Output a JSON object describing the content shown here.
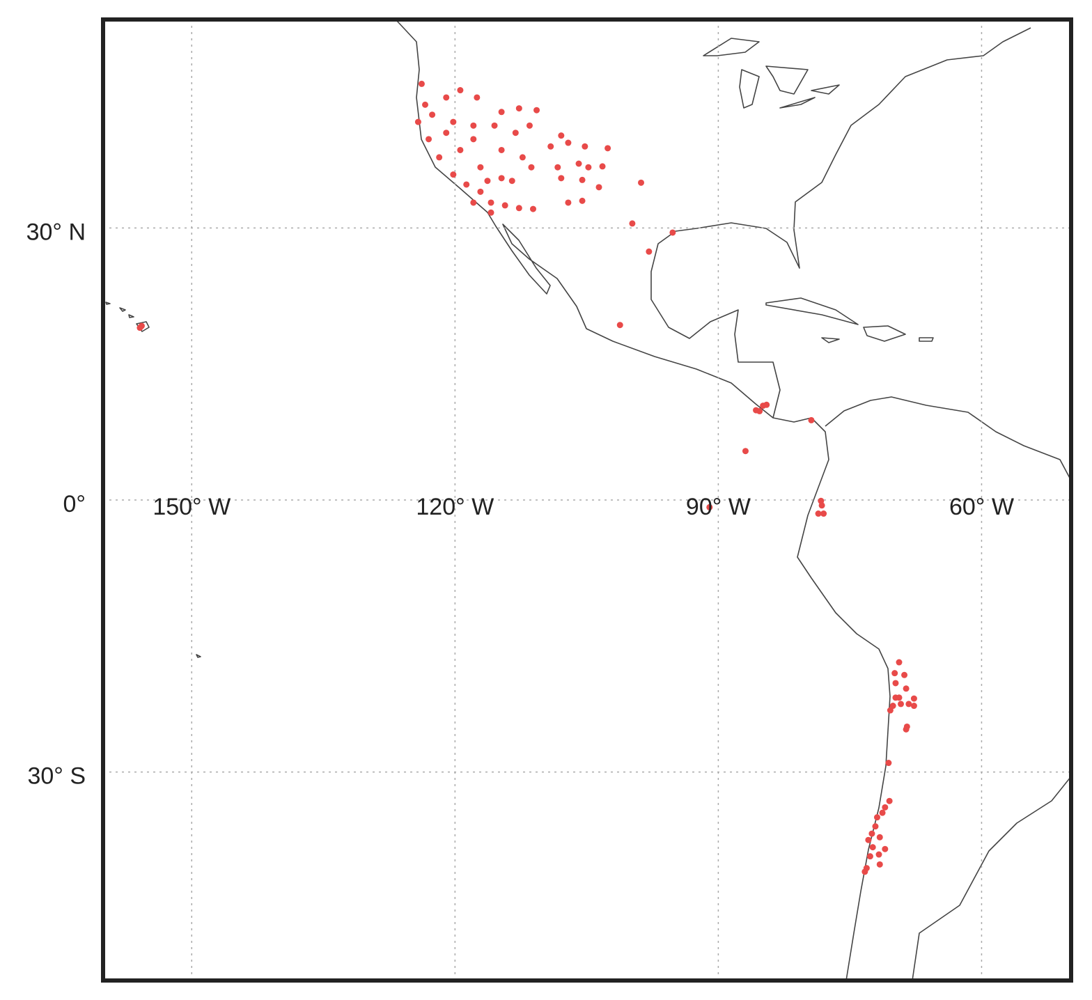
{
  "chart_data": {
    "type": "scatter",
    "color": "#e84a49",
    "grid": true,
    "xlim": [
      -160.1,
      -49.8
    ],
    "ylim": [
      -53,
      53
    ],
    "xticks": [
      {
        "value": -150,
        "label": "150° W"
      },
      {
        "value": -120,
        "label": "120° W"
      },
      {
        "value": -90,
        "label": "90° W"
      },
      {
        "value": -60,
        "label": "60° W"
      }
    ],
    "yticks": [
      {
        "value": 30,
        "label": "30° N"
      },
      {
        "value": 0,
        "label": "0°"
      },
      {
        "value": -30,
        "label": "30° S"
      }
    ],
    "x": [
      -123.8,
      -123.4,
      -124.2,
      -123.0,
      -121.8,
      -120.2,
      -118.7,
      -117.1,
      -115.9,
      -115.9,
      -117.9,
      -116.3,
      -114.7,
      -117.1,
      -119.4,
      -121.0,
      -122.6,
      -121.0,
      -119.4,
      -117.5,
      -114.7,
      -112.7,
      -110.7,
      -111.5,
      -113.1,
      -115.5,
      -117.9,
      -120.2,
      -117.9,
      -114.7,
      -112.3,
      -113.5,
      -114.3,
      -111.1,
      -112.7,
      -109.1,
      -107.9,
      -107.1,
      -105.2,
      -102.6,
      -108.3,
      -105.9,
      -104.8,
      -103.2,
      -107.9,
      -105.5,
      -103.6,
      -107.1,
      -105.5,
      -111.3,
      -98.8,
      -99.8,
      -95.2,
      -97.9,
      -101.2,
      -155.7,
      -155.9,
      -85.3,
      -84.9,
      -85.7,
      -84.5,
      -79.4,
      -86.9,
      -91.0,
      -78.3,
      -78.2,
      -78.6,
      -78.0,
      -69.4,
      -69.9,
      -68.8,
      -69.8,
      -68.6,
      -69.8,
      -69.4,
      -67.7,
      -68.3,
      -70.1,
      -70.4,
      -69.2,
      -67.7,
      -68.5,
      -68.6,
      -70.6,
      -70.5,
      -71.0,
      -71.3,
      -71.9,
      -72.1,
      -72.5,
      -71.6,
      -72.9,
      -72.4,
      -71.0,
      -71.7,
      -72.7,
      -71.6,
      -73.1,
      -73.3
    ],
    "values": [
      45.9,
      43.6,
      41.7,
      39.8,
      37.8,
      35.9,
      34.8,
      34.0,
      32.8,
      31.7,
      32.8,
      35.2,
      35.5,
      36.7,
      38.6,
      40.5,
      42.5,
      44.4,
      45.2,
      44.4,
      42.8,
      43.2,
      43.0,
      41.3,
      40.5,
      41.3,
      41.3,
      41.7,
      39.8,
      38.6,
      37.8,
      35.2,
      32.5,
      32.1,
      32.2,
      39.0,
      40.2,
      39.4,
      39.0,
      38.8,
      36.7,
      37.1,
      36.7,
      36.8,
      35.5,
      35.3,
      34.5,
      32.8,
      33.0,
      36.7,
      35.0,
      30.5,
      29.5,
      27.4,
      19.3,
      19.2,
      19.0,
      9.8,
      10.4,
      9.9,
      10.5,
      8.8,
      5.4,
      -0.8,
      -0.1,
      -0.6,
      -1.5,
      -1.5,
      -17.9,
      -19.1,
      -19.3,
      -20.2,
      -20.8,
      -21.8,
      -21.8,
      -21.9,
      -22.5,
      -22.7,
      -23.2,
      -22.5,
      -22.7,
      -25.0,
      -25.3,
      -29.0,
      -33.2,
      -33.9,
      -34.5,
      -35.0,
      -36.0,
      -36.8,
      -37.2,
      -37.5,
      -38.3,
      -38.5,
      -39.1,
      -39.3,
      -40.2,
      -40.6,
      -41.0
    ]
  }
}
